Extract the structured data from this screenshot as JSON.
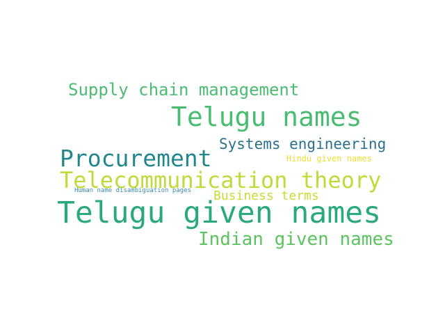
{
  "words": [
    {
      "text": "Telugu given names",
      "color": "#2aa87e"
    },
    {
      "text": "Telugu names",
      "color": "#48bd71"
    },
    {
      "text": "Procurement",
      "color": "#21868d"
    },
    {
      "text": "Telecommunication theory",
      "color": "#c2d93b"
    },
    {
      "text": "Indian given names",
      "color": "#5cc45f"
    },
    {
      "text": "Supply chain management",
      "color": "#4abd71"
    },
    {
      "text": "Systems engineering",
      "color": "#2b6f8e"
    },
    {
      "text": "Business terms",
      "color": "#c8db3a"
    },
    {
      "text": "Hindu given names",
      "color": "#ede035"
    },
    {
      "text": "Human name disambiguation pages",
      "color": "#3a8ab0"
    }
  ]
}
